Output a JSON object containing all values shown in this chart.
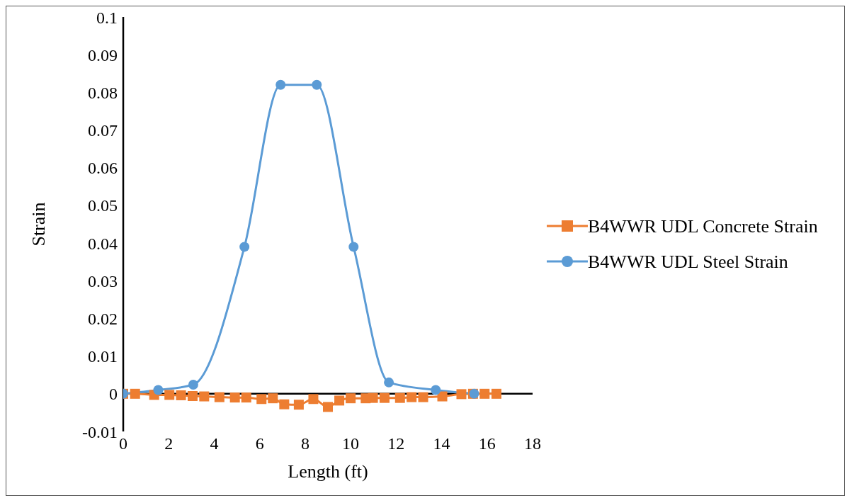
{
  "chart_data": {
    "type": "line",
    "xlabel": "Length (ft)",
    "ylabel": "Strain",
    "xlim": [
      0,
      18
    ],
    "xticks": [
      0,
      2,
      4,
      6,
      8,
      10,
      12,
      14,
      16,
      18
    ],
    "ylim": [
      -0.01,
      0.1
    ],
    "yticks": [
      -0.01,
      0,
      0.01,
      0.02,
      0.03,
      0.04,
      0.05,
      0.06,
      0.07,
      0.08,
      0.09,
      0.1
    ],
    "grid": false,
    "legend": "right",
    "line_style": "solid",
    "series": [
      {
        "name": "B4WWR UDL Concrete Strain",
        "color": "#ed7d31",
        "marker": "square",
        "x": [
          0,
          0.52,
          1.36,
          2.03,
          2.54,
          3.05,
          3.56,
          4.23,
          4.91,
          5.41,
          6.08,
          6.58,
          7.08,
          7.72,
          8.36,
          9.0,
          9.5,
          10.0,
          10.66,
          10.98,
          11.49,
          12.17,
          12.68,
          13.19,
          14.03,
          14.87,
          15.38,
          15.89,
          16.41
        ],
        "values": [
          0,
          0,
          -0.0003,
          -0.0003,
          -0.0004,
          -0.0006,
          -0.0007,
          -0.0009,
          -0.001,
          -0.001,
          -0.0014,
          -0.0012,
          -0.0028,
          -0.0029,
          -0.0014,
          -0.0035,
          -0.0018,
          -0.0012,
          -0.0012,
          -0.0011,
          -0.0011,
          -0.0011,
          -0.0009,
          -0.0009,
          -0.0007,
          -0.0001,
          0,
          0,
          0
        ]
      },
      {
        "name": "B4WWR UDL Steel Strain",
        "color": "#5b9bd5",
        "marker": "circle",
        "x": [
          0,
          1.54,
          3.08,
          5.33,
          6.92,
          8.51,
          10.13,
          11.68,
          13.74,
          15.43
        ],
        "values": [
          0,
          0.001,
          0.0024,
          0.039,
          0.082,
          0.082,
          0.039,
          0.003,
          0.001,
          0
        ]
      }
    ]
  }
}
